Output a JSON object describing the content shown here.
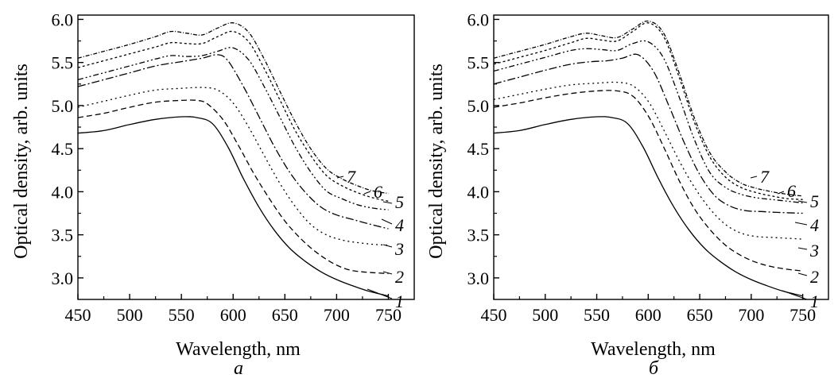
{
  "chart_data": [
    {
      "type": "line",
      "panel_label": "a",
      "xlabel": "Wavelength, nm",
      "ylabel": "Optical density, arb. units",
      "xlim": [
        450,
        775
      ],
      "ylim": [
        2.75,
        6.05
      ],
      "xticks": [
        "450",
        "500",
        "550",
        "600",
        "650",
        "700",
        "750"
      ],
      "yticks": [
        "3.0",
        "3.5",
        "4.0",
        "4.5",
        "5.0",
        "5.5",
        "6.0"
      ],
      "grid": false,
      "series": [
        {
          "name": "1",
          "dash": "solid",
          "x": [
            450,
            475,
            500,
            525,
            550,
            565,
            580,
            595,
            610,
            625,
            640,
            655,
            670,
            685,
            700,
            715,
            730,
            750
          ],
          "y": [
            4.68,
            4.71,
            4.78,
            4.84,
            4.87,
            4.86,
            4.79,
            4.52,
            4.15,
            3.82,
            3.55,
            3.34,
            3.19,
            3.07,
            2.98,
            2.91,
            2.85,
            2.79
          ]
        },
        {
          "name": "2",
          "dash": "7,4",
          "x": [
            450,
            475,
            500,
            525,
            550,
            565,
            575,
            590,
            605,
            620,
            635,
            650,
            665,
            680,
            695,
            710,
            725,
            750
          ],
          "y": [
            4.86,
            4.91,
            4.98,
            5.04,
            5.06,
            5.06,
            5.02,
            4.84,
            4.54,
            4.21,
            3.92,
            3.66,
            3.46,
            3.3,
            3.18,
            3.1,
            3.07,
            3.05
          ]
        },
        {
          "name": "3",
          "dash": "2,4",
          "x": [
            450,
            475,
            500,
            525,
            550,
            570,
            585,
            600,
            615,
            630,
            645,
            660,
            675,
            690,
            705,
            720,
            735,
            750
          ],
          "y": [
            4.98,
            5.05,
            5.12,
            5.18,
            5.2,
            5.21,
            5.18,
            5.03,
            4.75,
            4.42,
            4.1,
            3.83,
            3.62,
            3.5,
            3.44,
            3.41,
            3.39,
            3.38
          ]
        },
        {
          "name": "4",
          "dash": "10,3,2,3",
          "x": [
            450,
            475,
            500,
            525,
            550,
            570,
            585,
            595,
            610,
            625,
            640,
            655,
            670,
            685,
            700,
            715,
            730,
            750
          ],
          "y": [
            5.22,
            5.3,
            5.38,
            5.46,
            5.51,
            5.55,
            5.59,
            5.52,
            5.22,
            4.87,
            4.52,
            4.22,
            3.99,
            3.82,
            3.73,
            3.68,
            3.63,
            3.57
          ]
        },
        {
          "name": "5",
          "dash": "7,3,2,3,2,3",
          "x": [
            450,
            475,
            500,
            525,
            540,
            555,
            570,
            585,
            600,
            615,
            630,
            645,
            660,
            675,
            690,
            705,
            720,
            735,
            750
          ],
          "y": [
            5.3,
            5.38,
            5.46,
            5.54,
            5.58,
            5.57,
            5.58,
            5.63,
            5.67,
            5.53,
            5.22,
            4.87,
            4.52,
            4.23,
            4.01,
            3.92,
            3.85,
            3.81,
            3.79
          ]
        },
        {
          "name": "6",
          "dash": "3,3",
          "x": [
            450,
            475,
            500,
            525,
            540,
            555,
            570,
            585,
            600,
            615,
            630,
            645,
            660,
            675,
            690,
            705,
            720,
            735,
            750
          ],
          "y": [
            5.44,
            5.52,
            5.6,
            5.68,
            5.73,
            5.72,
            5.72,
            5.8,
            5.86,
            5.74,
            5.43,
            5.07,
            4.71,
            4.42,
            4.19,
            4.07,
            3.99,
            3.93,
            3.89
          ]
        },
        {
          "name": "7",
          "dash": "5,2,1,2",
          "x": [
            450,
            475,
            500,
            525,
            540,
            555,
            570,
            585,
            600,
            615,
            630,
            645,
            660,
            675,
            690,
            705,
            720,
            735,
            750
          ],
          "y": [
            5.55,
            5.63,
            5.71,
            5.8,
            5.86,
            5.84,
            5.82,
            5.9,
            5.96,
            5.85,
            5.54,
            5.17,
            4.81,
            4.5,
            4.27,
            4.15,
            4.07,
            4.01,
            3.98
          ]
        }
      ],
      "curve_labels": [
        "1",
        "2",
        "3",
        "4",
        "5",
        "6",
        "7"
      ]
    },
    {
      "type": "line",
      "panel_label": "б",
      "xlabel": "Wavelength, nm",
      "ylabel": "Optical density, arb. units",
      "xlim": [
        450,
        775
      ],
      "ylim": [
        2.75,
        6.05
      ],
      "xticks": [
        "450",
        "500",
        "550",
        "600",
        "650",
        "700",
        "750"
      ],
      "yticks": [
        "3.0",
        "3.5",
        "4.0",
        "4.5",
        "5.0",
        "5.5",
        "6.0"
      ],
      "grid": false,
      "series": [
        {
          "name": "1",
          "dash": "solid",
          "x": [
            450,
            475,
            500,
            525,
            550,
            565,
            580,
            595,
            610,
            625,
            640,
            655,
            670,
            685,
            700,
            715,
            730,
            750
          ],
          "y": [
            4.68,
            4.71,
            4.78,
            4.84,
            4.87,
            4.86,
            4.79,
            4.52,
            4.15,
            3.82,
            3.55,
            3.34,
            3.19,
            3.07,
            2.98,
            2.91,
            2.85,
            2.79
          ]
        },
        {
          "name": "2",
          "dash": "7,4",
          "x": [
            450,
            475,
            500,
            525,
            550,
            570,
            585,
            600,
            615,
            630,
            645,
            660,
            675,
            690,
            705,
            720,
            735,
            750
          ],
          "y": [
            4.98,
            5.03,
            5.09,
            5.14,
            5.17,
            5.17,
            5.11,
            4.88,
            4.52,
            4.13,
            3.8,
            3.56,
            3.38,
            3.26,
            3.18,
            3.13,
            3.1,
            3.08
          ]
        },
        {
          "name": "3",
          "dash": "2,4",
          "x": [
            450,
            475,
            500,
            525,
            550,
            570,
            585,
            600,
            615,
            630,
            645,
            660,
            675,
            690,
            705,
            720,
            735,
            750
          ],
          "y": [
            5.07,
            5.13,
            5.19,
            5.24,
            5.26,
            5.27,
            5.23,
            5.05,
            4.72,
            4.36,
            4.05,
            3.8,
            3.62,
            3.52,
            3.48,
            3.47,
            3.46,
            3.45
          ]
        },
        {
          "name": "4",
          "dash": "10,3,2,3",
          "x": [
            450,
            475,
            500,
            525,
            545,
            560,
            575,
            590,
            605,
            620,
            635,
            650,
            665,
            680,
            695,
            710,
            725,
            750
          ],
          "y": [
            5.25,
            5.33,
            5.41,
            5.48,
            5.51,
            5.52,
            5.55,
            5.59,
            5.4,
            5.0,
            4.57,
            4.2,
            3.95,
            3.83,
            3.78,
            3.77,
            3.76,
            3.75
          ]
        },
        {
          "name": "5",
          "dash": "7,3,2,3,2,3",
          "x": [
            450,
            475,
            500,
            525,
            540,
            555,
            570,
            585,
            600,
            615,
            630,
            645,
            660,
            675,
            690,
            705,
            720,
            735,
            750
          ],
          "y": [
            5.4,
            5.48,
            5.56,
            5.64,
            5.66,
            5.65,
            5.64,
            5.72,
            5.74,
            5.55,
            5.1,
            4.6,
            4.22,
            4.05,
            3.97,
            3.93,
            3.91,
            3.89,
            3.87
          ]
        },
        {
          "name": "6",
          "dash": "3,3",
          "x": [
            450,
            475,
            500,
            525,
            540,
            555,
            570,
            585,
            600,
            615,
            630,
            645,
            660,
            675,
            690,
            705,
            720,
            735,
            750
          ],
          "y": [
            5.48,
            5.56,
            5.64,
            5.73,
            5.78,
            5.76,
            5.75,
            5.86,
            5.96,
            5.8,
            5.33,
            4.8,
            4.4,
            4.17,
            4.05,
            3.99,
            3.95,
            3.92,
            3.91
          ]
        },
        {
          "name": "7",
          "dash": "5,2,1,2",
          "x": [
            450,
            475,
            500,
            525,
            540,
            555,
            570,
            585,
            600,
            615,
            630,
            645,
            660,
            675,
            690,
            705,
            720,
            735,
            750
          ],
          "y": [
            5.55,
            5.63,
            5.71,
            5.8,
            5.84,
            5.81,
            5.79,
            5.89,
            5.98,
            5.84,
            5.38,
            4.85,
            4.45,
            4.23,
            4.1,
            4.04,
            4.0,
            3.97,
            3.95
          ]
        }
      ],
      "curve_labels": [
        "1",
        "2",
        "3",
        "4",
        "5",
        "6",
        "7"
      ]
    }
  ]
}
